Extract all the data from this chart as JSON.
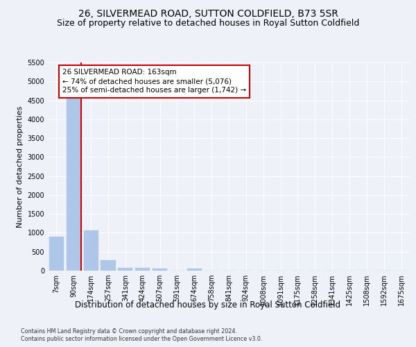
{
  "title_line1": "26, SILVERMEAD ROAD, SUTTON COLDFIELD, B73 5SR",
  "title_line2": "Size of property relative to detached houses in Royal Sutton Coldfield",
  "xlabel": "Distribution of detached houses by size in Royal Sutton Coldfield",
  "ylabel": "Number of detached properties",
  "categories": [
    "7sqm",
    "90sqm",
    "174sqm",
    "257sqm",
    "341sqm",
    "424sqm",
    "507sqm",
    "591sqm",
    "674sqm",
    "758sqm",
    "841sqm",
    "924sqm",
    "1008sqm",
    "1091sqm",
    "1175sqm",
    "1258sqm",
    "1341sqm",
    "1425sqm",
    "1508sqm",
    "1592sqm",
    "1675sqm"
  ],
  "values": [
    900,
    4540,
    1060,
    280,
    80,
    65,
    55,
    0,
    60,
    0,
    0,
    0,
    0,
    0,
    0,
    0,
    0,
    0,
    0,
    0,
    0
  ],
  "bar_color": "#aec6e8",
  "bar_edge_color": "#aec6e8",
  "vline_color": "#cc0000",
  "annotation_title": "26 SILVERMEAD ROAD: 163sqm",
  "annotation_line1": "← 74% of detached houses are smaller (5,076)",
  "annotation_line2": "25% of semi-detached houses are larger (1,742) →",
  "annotation_box_color": "#cc0000",
  "ylim": [
    0,
    5500
  ],
  "yticks": [
    0,
    500,
    1000,
    1500,
    2000,
    2500,
    3000,
    3500,
    4000,
    4500,
    5000,
    5500
  ],
  "footnote1": "Contains HM Land Registry data © Crown copyright and database right 2024.",
  "footnote2": "Contains public sector information licensed under the Open Government Licence v3.0.",
  "bg_color": "#eef2f8",
  "grid_color": "#ffffff",
  "title_fontsize": 10,
  "subtitle_fontsize": 9,
  "tick_fontsize": 7,
  "ylabel_fontsize": 8,
  "xlabel_fontsize": 8.5,
  "footnote_fontsize": 5.8
}
